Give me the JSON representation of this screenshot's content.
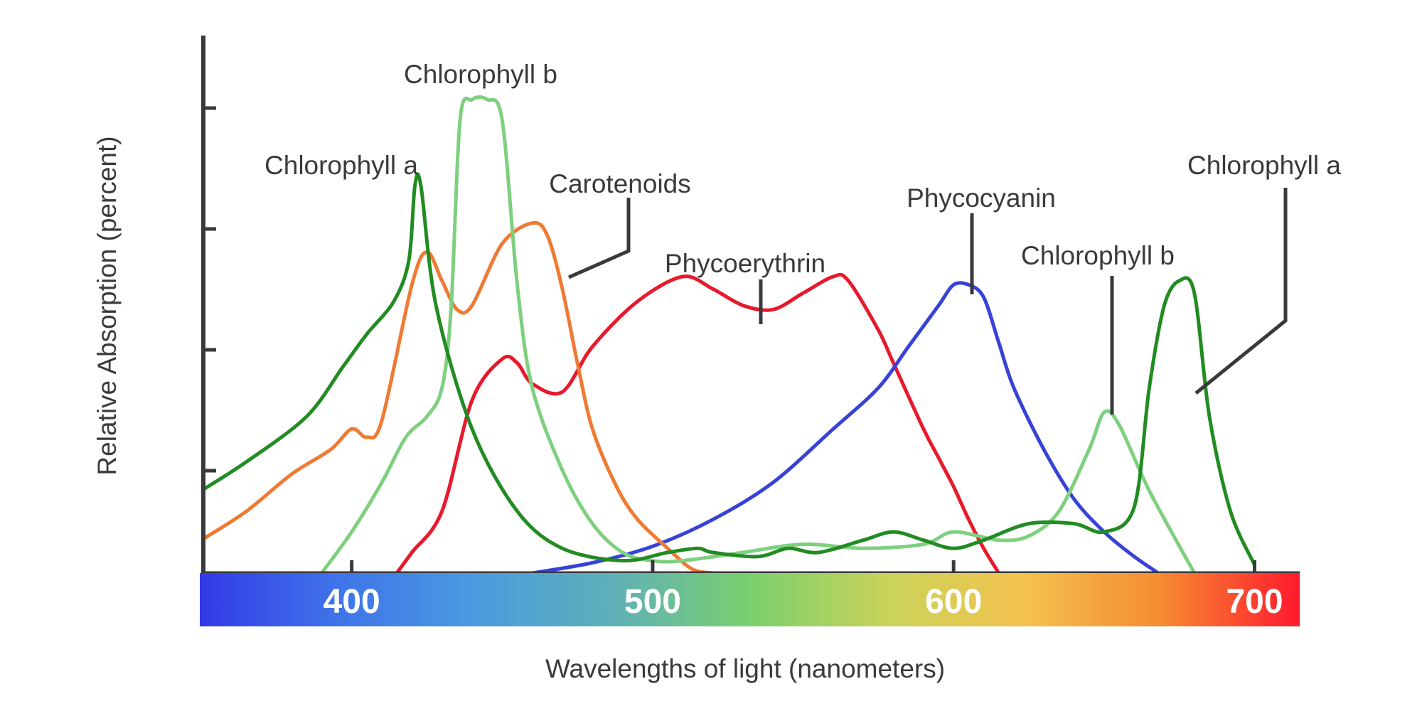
{
  "chart_data": {
    "type": "line",
    "title": "",
    "xlabel": "Wavelengths of light (nanometers)",
    "ylabel": "Relative Absorption (percent)",
    "xlim": [
      350,
      715
    ],
    "ylim": [
      0,
      115
    ],
    "x_ticks": [
      400,
      500,
      600,
      700
    ],
    "y_ticks_labeled": false,
    "spectrum_bar": {
      "colors": [
        "#3339e6",
        "#3f74e9",
        "#4a9ae0",
        "#5fb0b8",
        "#7acf6e",
        "#c9d35a",
        "#f4c24e",
        "#f58a31",
        "#ff1a2e"
      ]
    },
    "series": [
      {
        "name": "Chlorophyll a",
        "color": "#228b22",
        "x": [
          350,
          365,
          385,
          397,
          405,
          414,
          419,
          421,
          423,
          428,
          440,
          455,
          470,
          490,
          505,
          515,
          520,
          535,
          545,
          555,
          570,
          580,
          590,
          600,
          610,
          625,
          640,
          650,
          660,
          665,
          670,
          675,
          680,
          685,
          692,
          700
        ],
        "y": [
          20,
          27,
          38,
          50,
          58,
          66,
          76,
          94,
          94,
          65,
          35,
          15,
          6,
          3,
          5,
          6,
          5,
          4,
          6,
          5,
          8,
          10,
          8,
          6,
          8,
          12,
          12,
          10,
          16,
          45,
          65,
          71,
          68,
          38,
          15,
          2
        ]
      },
      {
        "name": "Chlorophyll b",
        "color": "#7ed07e",
        "x": [
          390,
          400,
          410,
          418,
          425,
          430,
          433,
          436,
          440,
          445,
          450,
          455,
          460,
          470,
          480,
          490,
          500,
          510,
          530,
          550,
          570,
          590,
          600,
          615,
          625,
          635,
          645,
          650,
          655,
          665,
          680
        ],
        "y": [
          0,
          10,
          22,
          33,
          38,
          45,
          64,
          110,
          115,
          115,
          110,
          70,
          45,
          25,
          12,
          5,
          3,
          3,
          5,
          7,
          6,
          7,
          10,
          8,
          9,
          15,
          30,
          39,
          36,
          20,
          0
        ]
      },
      {
        "name": "Carotenoids",
        "color": "#ef7a34",
        "x": [
          350,
          365,
          380,
          393,
          400,
          405,
          410,
          420,
          425,
          430,
          435,
          440,
          450,
          460,
          465,
          470,
          475,
          480,
          488,
          495,
          505,
          513,
          520
        ],
        "y": [
          8,
          15,
          24,
          30,
          35,
          33,
          37,
          70,
          78,
          71,
          64,
          65,
          80,
          85,
          82,
          69,
          51,
          35,
          21,
          13,
          6,
          1,
          0
        ]
      },
      {
        "name": "Phycoerythrin",
        "color": "#e8192c",
        "x": [
          415,
          420,
          430,
          440,
          450,
          455,
          460,
          470,
          480,
          495,
          510,
          520,
          530,
          540,
          550,
          560,
          565,
          575,
          580,
          590,
          595,
          600,
          605,
          610,
          615
        ],
        "y": [
          0,
          5,
          15,
          42,
          52,
          51,
          46,
          44,
          55,
          66,
          72,
          69,
          65,
          64,
          68,
          72,
          71,
          59,
          51,
          35,
          28,
          21,
          13,
          6,
          0
        ]
      },
      {
        "name": "Phycocyanin",
        "color": "#3742d6",
        "x": [
          460,
          480,
          500,
          520,
          540,
          560,
          575,
          585,
          595,
          600,
          605,
          610,
          615,
          620,
          630,
          640,
          650,
          660,
          668
        ],
        "y": [
          0,
          2.5,
          6.5,
          13,
          22,
          35,
          45,
          55,
          65,
          70,
          70,
          67,
          56,
          45,
          30,
          18,
          10,
          4,
          0
        ]
      }
    ],
    "annotations": [
      {
        "text": "Chlorophyll b",
        "series": "Chlorophyll b",
        "x": 445,
        "y": 115
      },
      {
        "text": "Chlorophyll a",
        "series": "Chlorophyll a",
        "x": 422,
        "y": 94
      },
      {
        "text": "Carotenoids",
        "series": "Carotenoids",
        "x": 465,
        "y": 80
      },
      {
        "text": "Phycoerythrin",
        "series": "Phycoerythrin",
        "x": 535,
        "y": 65
      },
      {
        "text": "Phycocyanin",
        "series": "Phycocyanin",
        "x": 605,
        "y": 70
      },
      {
        "text": "Chlorophyll b",
        "series": "Chlorophyll b",
        "x": 650,
        "y": 39
      },
      {
        "text": "Chlorophyll a",
        "series": "Chlorophyll a",
        "x": 677,
        "y": 70
      }
    ],
    "grid": false,
    "legend": "none"
  }
}
